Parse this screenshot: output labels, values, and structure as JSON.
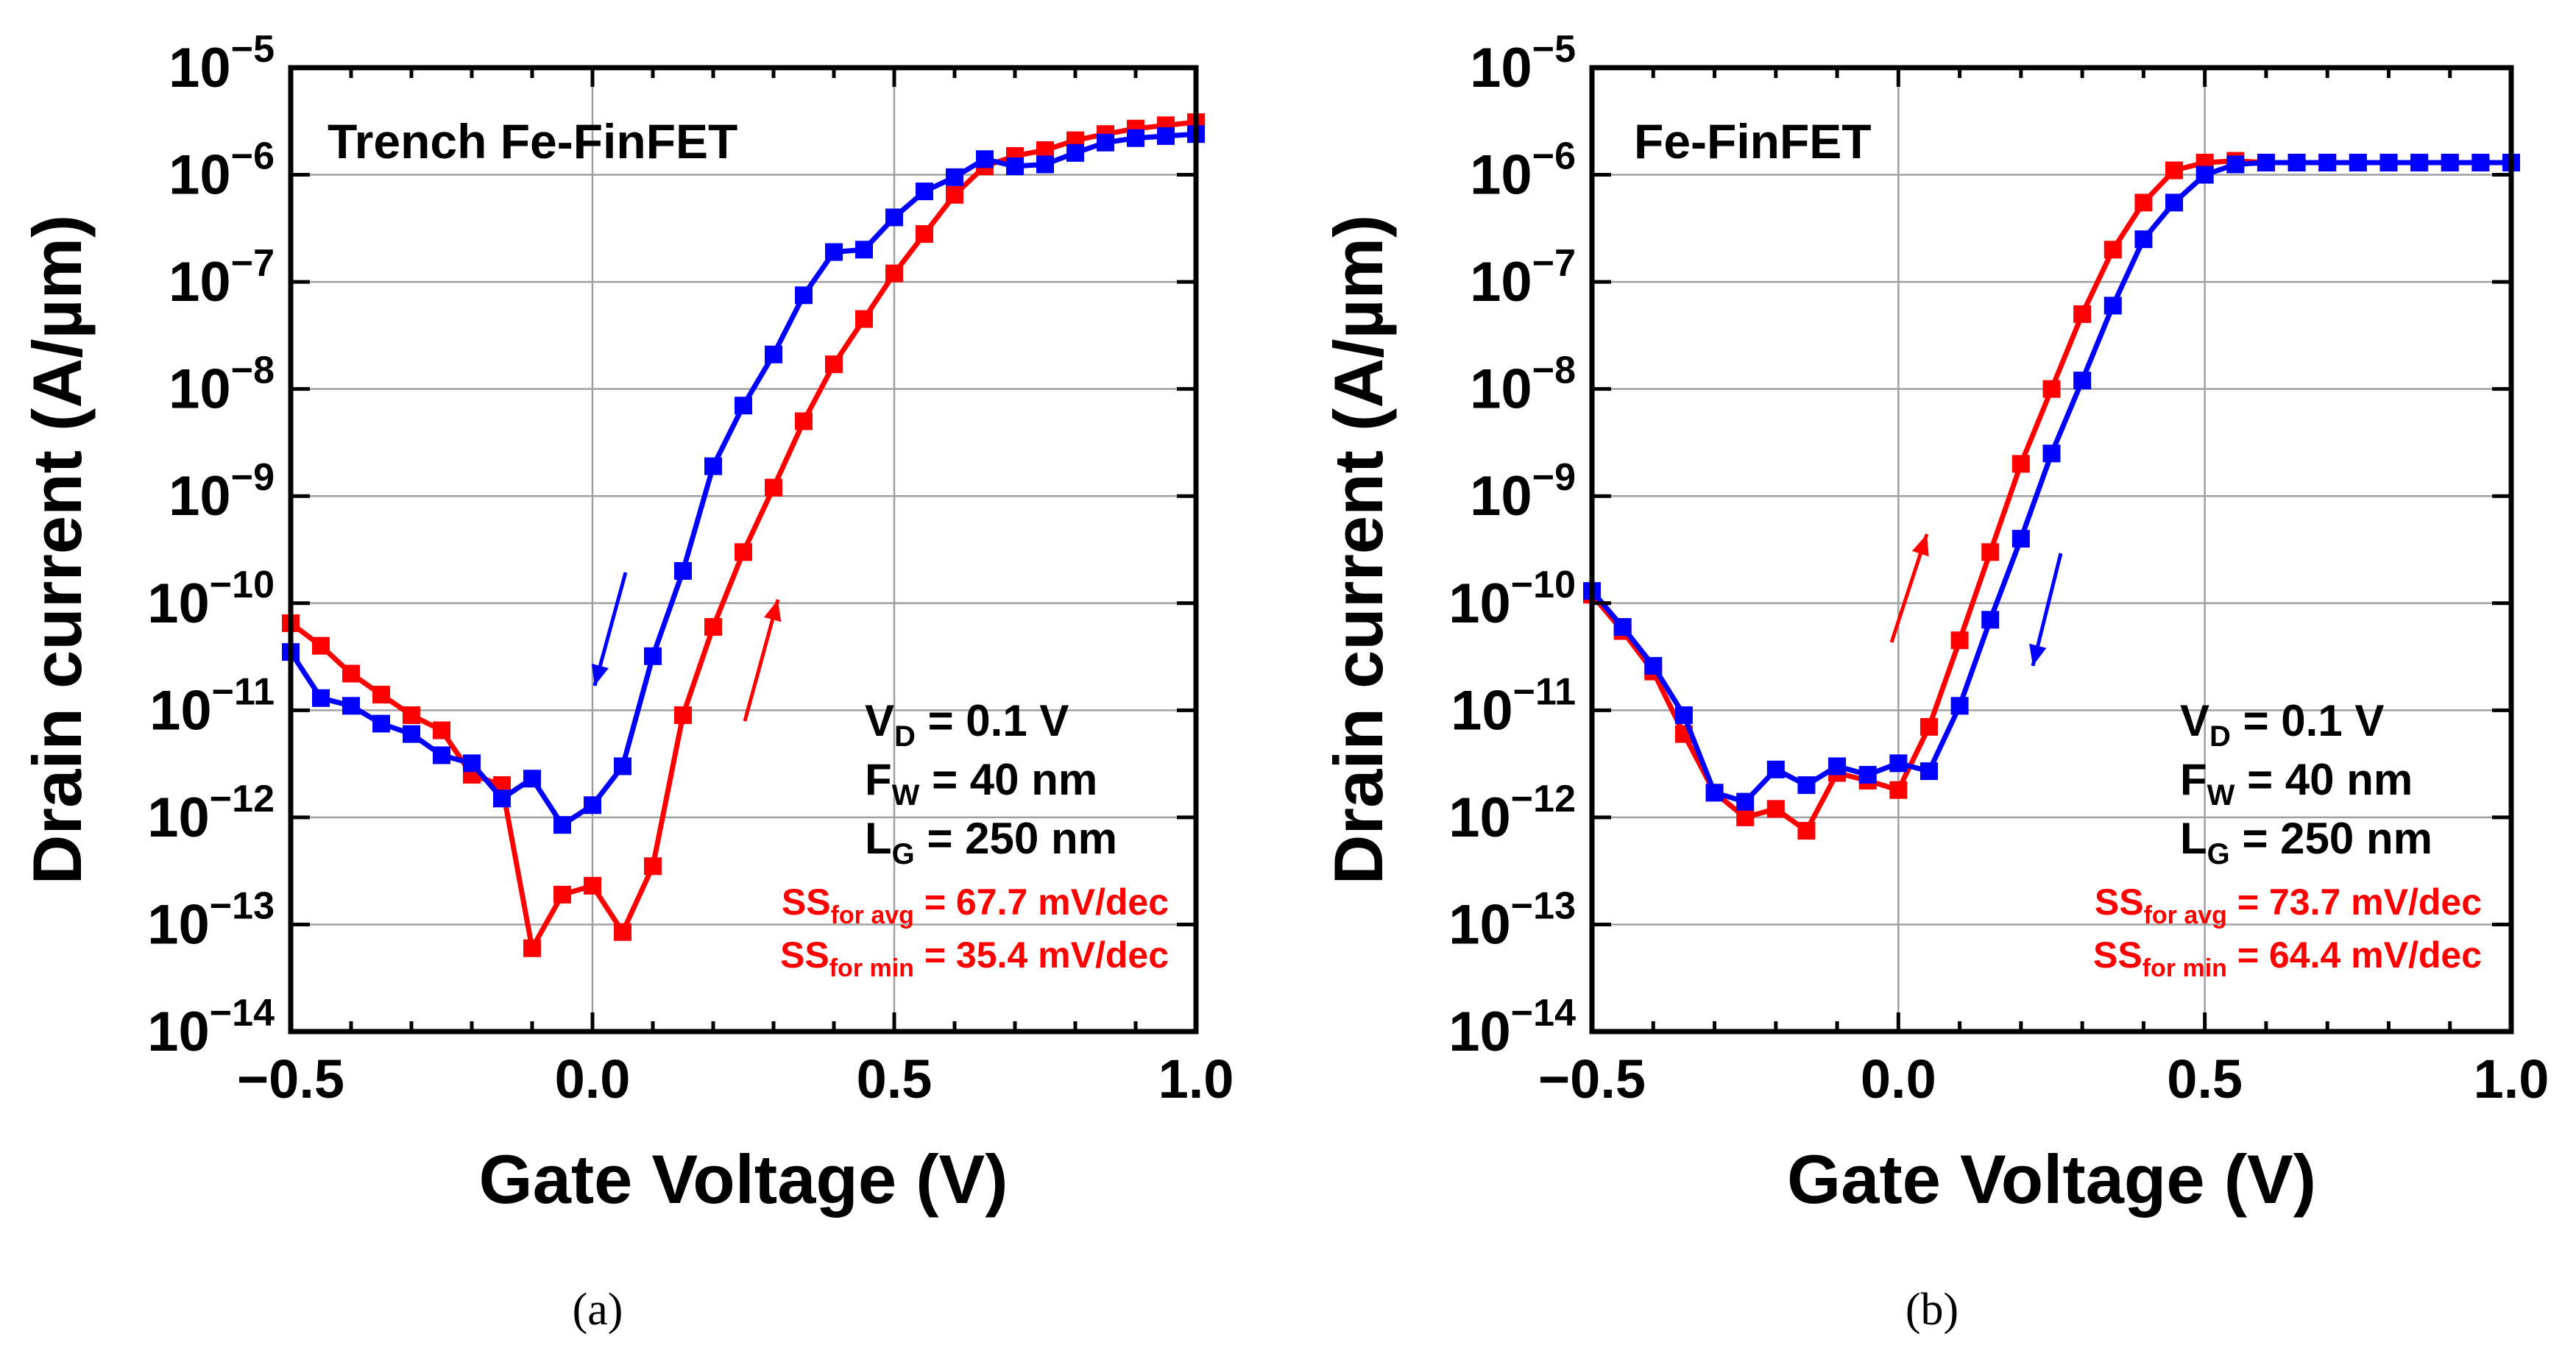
{
  "chart_data": [
    {
      "type": "line",
      "panel_label": "(a)",
      "title": "Trench Fe-FinFET",
      "xlabel": "Gate Voltage (V)",
      "ylabel": "Drain current (A/µm)",
      "xscale": "linear",
      "yscale": "log",
      "xlim": [
        -0.5,
        1.0
      ],
      "ylim": [
        1e-14,
        1e-05
      ],
      "xticks": [
        -0.5,
        0.0,
        0.5,
        1.0
      ],
      "xtick_labels": [
        "−0.5",
        "0.0",
        "0.5",
        "1.0"
      ],
      "ytick_exponents": [
        -14,
        -13,
        -12,
        -11,
        -10,
        -9,
        -8,
        -7,
        -6,
        -5
      ],
      "ytick_base": "10",
      "grid": true,
      "series": [
        {
          "name": "forward sweep",
          "color": "#ff0000",
          "x": [
            -0.5,
            -0.45,
            -0.4,
            -0.35,
            -0.3,
            -0.25,
            -0.2,
            -0.15,
            -0.1,
            -0.05,
            0.0,
            0.05,
            0.1,
            0.15,
            0.2,
            0.25,
            0.3,
            0.35,
            0.4,
            0.45,
            0.5,
            0.55,
            0.6,
            0.65,
            0.7,
            0.75,
            0.8,
            0.85,
            0.9,
            0.95,
            1.0
          ],
          "y": [
            6.5e-11,
            4e-11,
            2.2e-11,
            1.4e-11,
            9e-12,
            6.5e-12,
            2.5e-12,
            2e-12,
            6e-14,
            1.9e-13,
            2.3e-13,
            8.5e-14,
            3.5e-13,
            9e-12,
            6e-11,
            3e-10,
            1.2e-09,
            5e-09,
            1.7e-08,
            4.5e-08,
            1.2e-07,
            2.8e-07,
            6.5e-07,
            1.2e-06,
            1.5e-06,
            1.7e-06,
            2.1e-06,
            2.4e-06,
            2.7e-06,
            2.9e-06,
            3.1e-06
          ]
        },
        {
          "name": "reverse sweep",
          "color": "#0000ff",
          "x": [
            -0.5,
            -0.45,
            -0.4,
            -0.35,
            -0.3,
            -0.25,
            -0.2,
            -0.15,
            -0.1,
            -0.05,
            0.0,
            0.05,
            0.1,
            0.15,
            0.2,
            0.25,
            0.3,
            0.35,
            0.4,
            0.45,
            0.5,
            0.55,
            0.6,
            0.65,
            0.7,
            0.75,
            0.8,
            0.85,
            0.9,
            0.95,
            1.0
          ],
          "y": [
            3.5e-11,
            1.3e-11,
            1.1e-11,
            7.5e-12,
            6e-12,
            3.8e-12,
            3.2e-12,
            1.5e-12,
            2.3e-12,
            8.5e-13,
            1.3e-12,
            3e-12,
            3.2e-11,
            2e-10,
            1.9e-09,
            7e-09,
            2.1e-08,
            7.5e-08,
            1.9e-07,
            2e-07,
            4e-07,
            7e-07,
            9.5e-07,
            1.4e-06,
            1.2e-06,
            1.25e-06,
            1.6e-06,
            2e-06,
            2.2e-06,
            2.3e-06,
            2.4e-06
          ]
        }
      ],
      "annotations": [
        {
          "sub": "D",
          "value": "= 0.1 V",
          "main": "V"
        },
        {
          "sub": "W",
          "value": "= 40 nm",
          "main": "F"
        },
        {
          "sub": "G",
          "value": "= 250 nm",
          "main": "L"
        }
      ],
      "ss_annotations": [
        {
          "main": "SS",
          "sub": "for avg",
          "value": "= 67.7 mV/dec"
        },
        {
          "main": "SS",
          "sub": "for min",
          "value": "= 35.4 mV/dec"
        }
      ]
    },
    {
      "type": "line",
      "panel_label": "(b)",
      "title": "Fe-FinFET",
      "xlabel": "Gate Voltage (V)",
      "ylabel": "Drain current (A/µm)",
      "xscale": "linear",
      "yscale": "log",
      "xlim": [
        -0.5,
        1.0
      ],
      "ylim": [
        1e-14,
        1e-05
      ],
      "xticks": [
        -0.5,
        0.0,
        0.5,
        1.0
      ],
      "xtick_labels": [
        "−0.5",
        "0.0",
        "0.5",
        "1.0"
      ],
      "ytick_exponents": [
        -14,
        -13,
        -12,
        -11,
        -10,
        -9,
        -8,
        -7,
        -6,
        -5
      ],
      "ytick_base": "10",
      "grid": true,
      "series": [
        {
          "name": "forward sweep",
          "color": "#ff0000",
          "x": [
            -0.5,
            -0.45,
            -0.4,
            -0.35,
            -0.3,
            -0.25,
            -0.2,
            -0.15,
            -0.1,
            -0.05,
            0.0,
            0.05,
            0.1,
            0.15,
            0.2,
            0.25,
            0.3,
            0.35,
            0.4,
            0.45,
            0.5,
            0.55,
            0.6,
            0.65,
            0.7,
            0.75,
            0.8,
            0.85,
            0.9,
            0.95,
            1.0
          ],
          "y": [
            1.2e-10,
            5.5e-11,
            2.3e-11,
            6e-12,
            1.7e-12,
            1e-12,
            1.2e-12,
            7.5e-13,
            2.6e-12,
            2.2e-12,
            1.8e-12,
            7e-12,
            4.5e-11,
            3e-10,
            2e-09,
            1e-08,
            5e-08,
            2e-07,
            5.5e-07,
            1.1e-06,
            1.3e-06,
            1.35e-06,
            1.3e-06,
            1.3e-06,
            1.3e-06,
            1.3e-06,
            1.3e-06,
            1.3e-06,
            1.3e-06,
            1.3e-06,
            1.3e-06
          ]
        },
        {
          "name": "reverse sweep",
          "color": "#0000ff",
          "x": [
            -0.5,
            -0.45,
            -0.4,
            -0.35,
            -0.3,
            -0.25,
            -0.2,
            -0.15,
            -0.1,
            -0.05,
            0.0,
            0.05,
            0.1,
            0.15,
            0.2,
            0.25,
            0.3,
            0.35,
            0.4,
            0.45,
            0.5,
            0.55,
            0.6,
            0.65,
            0.7,
            0.75,
            0.8,
            0.85,
            0.9,
            0.95,
            1.0
          ],
          "y": [
            1.3e-10,
            6e-11,
            2.6e-11,
            9e-12,
            1.7e-12,
            1.4e-12,
            2.8e-12,
            2e-12,
            3e-12,
            2.5e-12,
            3.2e-12,
            2.7e-12,
            1.1e-11,
            7e-11,
            4e-10,
            2.5e-09,
            1.2e-08,
            6e-08,
            2.5e-07,
            5.5e-07,
            1e-06,
            1.25e-06,
            1.3e-06,
            1.3e-06,
            1.3e-06,
            1.3e-06,
            1.3e-06,
            1.3e-06,
            1.3e-06,
            1.3e-06,
            1.3e-06
          ]
        }
      ],
      "annotations": [
        {
          "sub": "D",
          "value": "= 0.1 V",
          "main": "V"
        },
        {
          "sub": "W",
          "value": "= 40 nm",
          "main": "F"
        },
        {
          "sub": "G",
          "value": "= 250 nm",
          "main": "L"
        }
      ],
      "ss_annotations": [
        {
          "main": "SS",
          "sub": "for avg",
          "value": "= 73.7 mV/dec"
        },
        {
          "main": "SS",
          "sub": "for min",
          "value": "= 64.4 mV/dec"
        }
      ]
    }
  ],
  "style": {
    "axis_color": "#000000",
    "grid_color": "#a0a0a0",
    "text_red": "#ff0000"
  }
}
